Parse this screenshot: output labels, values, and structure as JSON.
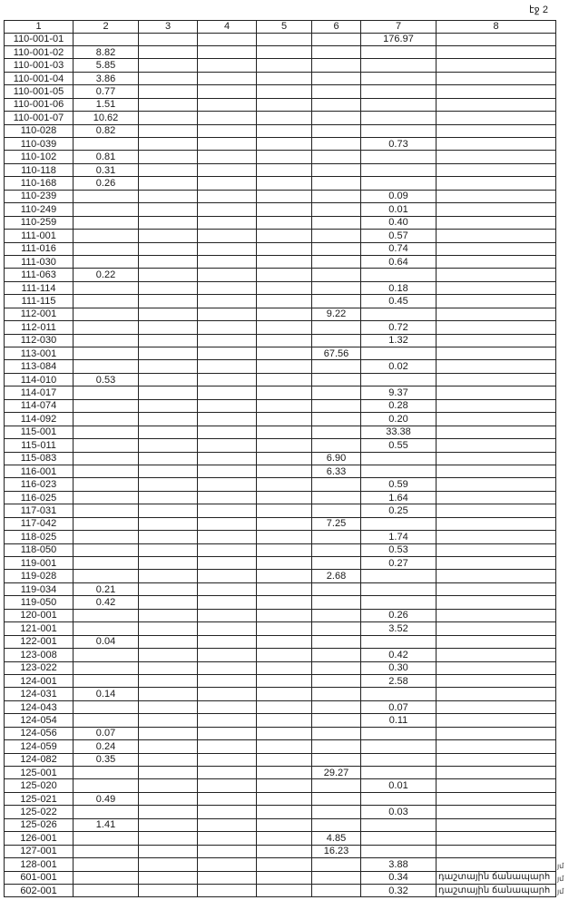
{
  "page_label": "էջ 2",
  "columns": [
    "1",
    "2",
    "3",
    "4",
    "5",
    "6",
    "7",
    "8"
  ],
  "rows": [
    [
      "110-001-01",
      "",
      "",
      "",
      "",
      "",
      "176.97",
      ""
    ],
    [
      "110-001-02",
      "8.82",
      "",
      "",
      "",
      "",
      "",
      ""
    ],
    [
      "110-001-03",
      "5.85",
      "",
      "",
      "",
      "",
      "",
      ""
    ],
    [
      "110-001-04",
      "3.86",
      "",
      "",
      "",
      "",
      "",
      ""
    ],
    [
      "110-001-05",
      "0.77",
      "",
      "",
      "",
      "",
      "",
      ""
    ],
    [
      "110-001-06",
      "1.51",
      "",
      "",
      "",
      "",
      "",
      ""
    ],
    [
      "110-001-07",
      "10.62",
      "",
      "",
      "",
      "",
      "",
      ""
    ],
    [
      "110-028",
      "0.82",
      "",
      "",
      "",
      "",
      "",
      ""
    ],
    [
      "110-039",
      "",
      "",
      "",
      "",
      "",
      "0.73",
      ""
    ],
    [
      "110-102",
      "0.81",
      "",
      "",
      "",
      "",
      "",
      ""
    ],
    [
      "110-118",
      "0.31",
      "",
      "",
      "",
      "",
      "",
      ""
    ],
    [
      "110-168",
      "0.26",
      "",
      "",
      "",
      "",
      "",
      ""
    ],
    [
      "110-239",
      "",
      "",
      "",
      "",
      "",
      "0.09",
      ""
    ],
    [
      "110-249",
      "",
      "",
      "",
      "",
      "",
      "0.01",
      ""
    ],
    [
      "110-259",
      "",
      "",
      "",
      "",
      "",
      "0.40",
      ""
    ],
    [
      "111-001",
      "",
      "",
      "",
      "",
      "",
      "0.57",
      ""
    ],
    [
      "111-016",
      "",
      "",
      "",
      "",
      "",
      "0.74",
      ""
    ],
    [
      "111-030",
      "",
      "",
      "",
      "",
      "",
      "0.64",
      ""
    ],
    [
      "111-063",
      "0.22",
      "",
      "",
      "",
      "",
      "",
      ""
    ],
    [
      "111-114",
      "",
      "",
      "",
      "",
      "",
      "0.18",
      ""
    ],
    [
      "111-115",
      "",
      "",
      "",
      "",
      "",
      "0.45",
      ""
    ],
    [
      "112-001",
      "",
      "",
      "",
      "",
      "9.22",
      "",
      ""
    ],
    [
      "112-011",
      "",
      "",
      "",
      "",
      "",
      "0.72",
      ""
    ],
    [
      "112-030",
      "",
      "",
      "",
      "",
      "",
      "1.32",
      ""
    ],
    [
      "113-001",
      "",
      "",
      "",
      "",
      "67.56",
      "",
      ""
    ],
    [
      "113-084",
      "",
      "",
      "",
      "",
      "",
      "0.02",
      ""
    ],
    [
      "114-010",
      "0.53",
      "",
      "",
      "",
      "",
      "",
      ""
    ],
    [
      "114-017",
      "",
      "",
      "",
      "",
      "",
      "9.37",
      ""
    ],
    [
      "114-074",
      "",
      "",
      "",
      "",
      "",
      "0.28",
      ""
    ],
    [
      "114-092",
      "",
      "",
      "",
      "",
      "",
      "0.20",
      ""
    ],
    [
      "115-001",
      "",
      "",
      "",
      "",
      "",
      "33.38",
      ""
    ],
    [
      "115-011",
      "",
      "",
      "",
      "",
      "",
      "0.55",
      ""
    ],
    [
      "115-083",
      "",
      "",
      "",
      "",
      "6.90",
      "",
      ""
    ],
    [
      "116-001",
      "",
      "",
      "",
      "",
      "6.33",
      "",
      ""
    ],
    [
      "116-023",
      "",
      "",
      "",
      "",
      "",
      "0.59",
      ""
    ],
    [
      "116-025",
      "",
      "",
      "",
      "",
      "",
      "1.64",
      ""
    ],
    [
      "117-031",
      "",
      "",
      "",
      "",
      "",
      "0.25",
      ""
    ],
    [
      "117-042",
      "",
      "",
      "",
      "",
      "7.25",
      "",
      ""
    ],
    [
      "118-025",
      "",
      "",
      "",
      "",
      "",
      "1.74",
      ""
    ],
    [
      "118-050",
      "",
      "",
      "",
      "",
      "",
      "0.53",
      ""
    ],
    [
      "119-001",
      "",
      "",
      "",
      "",
      "",
      "0.27",
      ""
    ],
    [
      "119-028",
      "",
      "",
      "",
      "",
      "2.68",
      "",
      ""
    ],
    [
      "119-034",
      "0.21",
      "",
      "",
      "",
      "",
      "",
      ""
    ],
    [
      "119-050",
      "0.42",
      "",
      "",
      "",
      "",
      "",
      ""
    ],
    [
      "120-001",
      "",
      "",
      "",
      "",
      "",
      "0.26",
      ""
    ],
    [
      "121-001",
      "",
      "",
      "",
      "",
      "",
      "3.52",
      ""
    ],
    [
      "122-001",
      "0.04",
      "",
      "",
      "",
      "",
      "",
      ""
    ],
    [
      "123-008",
      "",
      "",
      "",
      "",
      "",
      "0.42",
      ""
    ],
    [
      "123-022",
      "",
      "",
      "",
      "",
      "",
      "0.30",
      ""
    ],
    [
      "124-001",
      "",
      "",
      "",
      "",
      "",
      "2.58",
      ""
    ],
    [
      "124-031",
      "0.14",
      "",
      "",
      "",
      "",
      "",
      ""
    ],
    [
      "124-043",
      "",
      "",
      "",
      "",
      "",
      "0.07",
      ""
    ],
    [
      "124-054",
      "",
      "",
      "",
      "",
      "",
      "0.11",
      ""
    ],
    [
      "124-056",
      "0.07",
      "",
      "",
      "",
      "",
      "",
      ""
    ],
    [
      "124-059",
      "0.24",
      "",
      "",
      "",
      "",
      "",
      ""
    ],
    [
      "124-082",
      "0.35",
      "",
      "",
      "",
      "",
      "",
      ""
    ],
    [
      "125-001",
      "",
      "",
      "",
      "",
      "29.27",
      "",
      ""
    ],
    [
      "125-020",
      "",
      "",
      "",
      "",
      "",
      "0.01",
      ""
    ],
    [
      "125-021",
      "0.49",
      "",
      "",
      "",
      "",
      "",
      ""
    ],
    [
      "125-022",
      "",
      "",
      "",
      "",
      "",
      "0.03",
      ""
    ],
    [
      "125-026",
      "1.41",
      "",
      "",
      "",
      "",
      "",
      ""
    ],
    [
      "126-001",
      "",
      "",
      "",
      "",
      "4.85",
      "",
      ""
    ],
    [
      "127-001",
      "",
      "",
      "",
      "",
      "16.23",
      "",
      ""
    ],
    [
      "128-001",
      "",
      "",
      "",
      "",
      "",
      "3.88",
      ""
    ],
    [
      "601-001",
      "",
      "",
      "",
      "",
      "",
      "0.34",
      "դաշտային ճանապարհ"
    ],
    [
      "602-001",
      "",
      "",
      "",
      "",
      "",
      "0.32",
      "դաշտային ճանապարհ"
    ]
  ],
  "margin_fragments": [
    "յմ",
    "յմ",
    "յմ"
  ]
}
